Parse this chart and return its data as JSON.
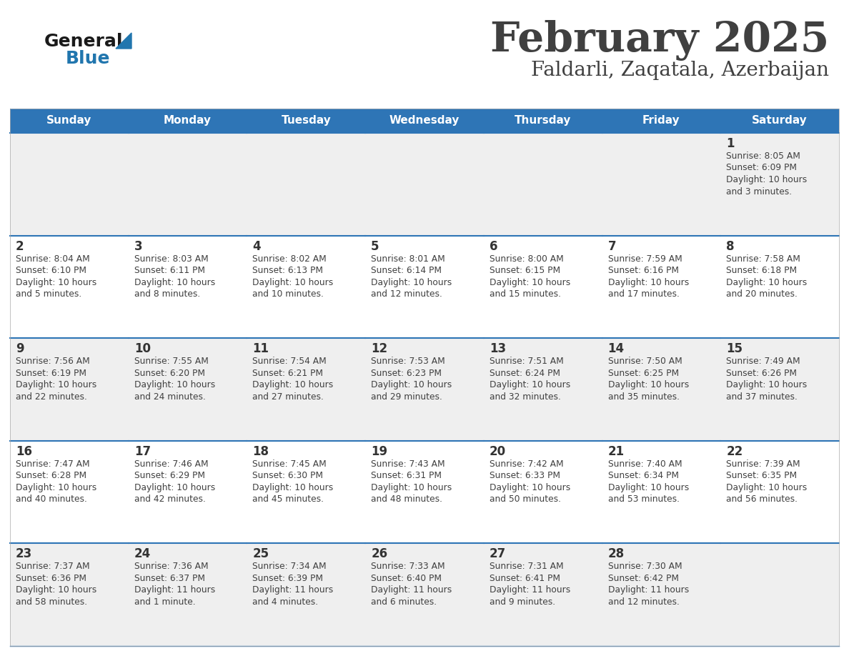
{
  "title": "February 2025",
  "subtitle": "Faldarli, Zaqatala, Azerbaijan",
  "header_color": "#2E75B6",
  "header_text_color": "#FFFFFF",
  "day_names": [
    "Sunday",
    "Monday",
    "Tuesday",
    "Wednesday",
    "Thursday",
    "Friday",
    "Saturday"
  ],
  "bg_color": "#FFFFFF",
  "cell_bg_even": "#EFEFEF",
  "cell_bg_odd": "#FFFFFF",
  "divider_color": "#2E75B6",
  "text_color": "#404040",
  "day_num_color": "#333333",
  "logo_general_color": "#1a1a1a",
  "logo_blue_color": "#2176AE",
  "days": [
    {
      "day": 1,
      "col": 6,
      "row": 0,
      "sunrise": "8:05 AM",
      "sunset": "6:09 PM",
      "daylight": "10 hours and 3 minutes."
    },
    {
      "day": 2,
      "col": 0,
      "row": 1,
      "sunrise": "8:04 AM",
      "sunset": "6:10 PM",
      "daylight": "10 hours and 5 minutes."
    },
    {
      "day": 3,
      "col": 1,
      "row": 1,
      "sunrise": "8:03 AM",
      "sunset": "6:11 PM",
      "daylight": "10 hours and 8 minutes."
    },
    {
      "day": 4,
      "col": 2,
      "row": 1,
      "sunrise": "8:02 AM",
      "sunset": "6:13 PM",
      "daylight": "10 hours and 10 minutes."
    },
    {
      "day": 5,
      "col": 3,
      "row": 1,
      "sunrise": "8:01 AM",
      "sunset": "6:14 PM",
      "daylight": "10 hours and 12 minutes."
    },
    {
      "day": 6,
      "col": 4,
      "row": 1,
      "sunrise": "8:00 AM",
      "sunset": "6:15 PM",
      "daylight": "10 hours and 15 minutes."
    },
    {
      "day": 7,
      "col": 5,
      "row": 1,
      "sunrise": "7:59 AM",
      "sunset": "6:16 PM",
      "daylight": "10 hours and 17 minutes."
    },
    {
      "day": 8,
      "col": 6,
      "row": 1,
      "sunrise": "7:58 AM",
      "sunset": "6:18 PM",
      "daylight": "10 hours and 20 minutes."
    },
    {
      "day": 9,
      "col": 0,
      "row": 2,
      "sunrise": "7:56 AM",
      "sunset": "6:19 PM",
      "daylight": "10 hours and 22 minutes."
    },
    {
      "day": 10,
      "col": 1,
      "row": 2,
      "sunrise": "7:55 AM",
      "sunset": "6:20 PM",
      "daylight": "10 hours and 24 minutes."
    },
    {
      "day": 11,
      "col": 2,
      "row": 2,
      "sunrise": "7:54 AM",
      "sunset": "6:21 PM",
      "daylight": "10 hours and 27 minutes."
    },
    {
      "day": 12,
      "col": 3,
      "row": 2,
      "sunrise": "7:53 AM",
      "sunset": "6:23 PM",
      "daylight": "10 hours and 29 minutes."
    },
    {
      "day": 13,
      "col": 4,
      "row": 2,
      "sunrise": "7:51 AM",
      "sunset": "6:24 PM",
      "daylight": "10 hours and 32 minutes."
    },
    {
      "day": 14,
      "col": 5,
      "row": 2,
      "sunrise": "7:50 AM",
      "sunset": "6:25 PM",
      "daylight": "10 hours and 35 minutes."
    },
    {
      "day": 15,
      "col": 6,
      "row": 2,
      "sunrise": "7:49 AM",
      "sunset": "6:26 PM",
      "daylight": "10 hours and 37 minutes."
    },
    {
      "day": 16,
      "col": 0,
      "row": 3,
      "sunrise": "7:47 AM",
      "sunset": "6:28 PM",
      "daylight": "10 hours and 40 minutes."
    },
    {
      "day": 17,
      "col": 1,
      "row": 3,
      "sunrise": "7:46 AM",
      "sunset": "6:29 PM",
      "daylight": "10 hours and 42 minutes."
    },
    {
      "day": 18,
      "col": 2,
      "row": 3,
      "sunrise": "7:45 AM",
      "sunset": "6:30 PM",
      "daylight": "10 hours and 45 minutes."
    },
    {
      "day": 19,
      "col": 3,
      "row": 3,
      "sunrise": "7:43 AM",
      "sunset": "6:31 PM",
      "daylight": "10 hours and 48 minutes."
    },
    {
      "day": 20,
      "col": 4,
      "row": 3,
      "sunrise": "7:42 AM",
      "sunset": "6:33 PM",
      "daylight": "10 hours and 50 minutes."
    },
    {
      "day": 21,
      "col": 5,
      "row": 3,
      "sunrise": "7:40 AM",
      "sunset": "6:34 PM",
      "daylight": "10 hours and 53 minutes."
    },
    {
      "day": 22,
      "col": 6,
      "row": 3,
      "sunrise": "7:39 AM",
      "sunset": "6:35 PM",
      "daylight": "10 hours and 56 minutes."
    },
    {
      "day": 23,
      "col": 0,
      "row": 4,
      "sunrise": "7:37 AM",
      "sunset": "6:36 PM",
      "daylight": "10 hours and 58 minutes."
    },
    {
      "day": 24,
      "col": 1,
      "row": 4,
      "sunrise": "7:36 AM",
      "sunset": "6:37 PM",
      "daylight": "11 hours and 1 minute."
    },
    {
      "day": 25,
      "col": 2,
      "row": 4,
      "sunrise": "7:34 AM",
      "sunset": "6:39 PM",
      "daylight": "11 hours and 4 minutes."
    },
    {
      "day": 26,
      "col": 3,
      "row": 4,
      "sunrise": "7:33 AM",
      "sunset": "6:40 PM",
      "daylight": "11 hours and 6 minutes."
    },
    {
      "day": 27,
      "col": 4,
      "row": 4,
      "sunrise": "7:31 AM",
      "sunset": "6:41 PM",
      "daylight": "11 hours and 9 minutes."
    },
    {
      "day": 28,
      "col": 5,
      "row": 4,
      "sunrise": "7:30 AM",
      "sunset": "6:42 PM",
      "daylight": "11 hours and 12 minutes."
    }
  ],
  "num_rows": 5,
  "num_cols": 7,
  "fig_width": 11.88,
  "fig_height": 9.18,
  "dpi": 100
}
